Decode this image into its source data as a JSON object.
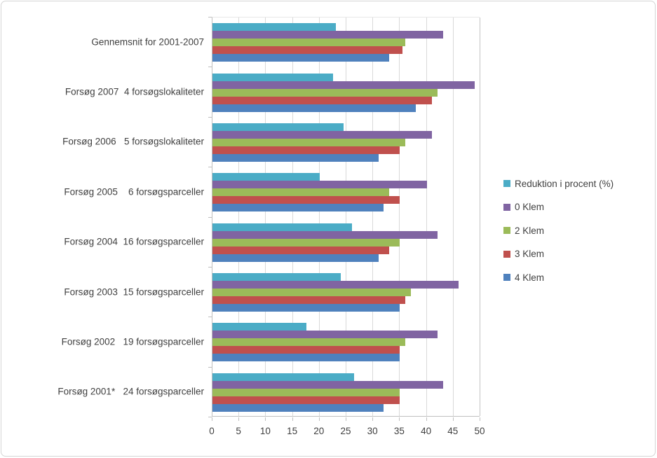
{
  "chart_data": {
    "type": "bar",
    "orientation": "horizontal",
    "title": "",
    "xlabel": "",
    "ylabel": "",
    "xlim": [
      0,
      50
    ],
    "xticks": [
      0,
      5,
      10,
      15,
      20,
      25,
      30,
      35,
      40,
      45,
      50
    ],
    "grid": true,
    "legend_position": "right",
    "categories": [
      "Gennemsnit for 2001-2007",
      "Forsøg 2007  4 forsøgslokaliteter",
      "Forsøg 2006   5 forsøgslokaliteter",
      "Forsøg 2005    6 forsøgsparceller",
      "Forsøg 2004  16 forsøgsparceller",
      "Forsøg 2003  15 forsøgsparceller",
      "Forsøg 2002   19 forsøgsparceller",
      "Forsøg 2001*   24 forsøgsparceller"
    ],
    "series": [
      {
        "name": "Reduktion i procent (%)",
        "color": "#4BACC6",
        "values": [
          23,
          22.5,
          24.5,
          20,
          26,
          24,
          17.5,
          26.5
        ]
      },
      {
        "name": "0 Klem",
        "color": "#8064A2",
        "values": [
          43,
          49,
          41,
          40,
          42,
          46,
          42,
          43
        ]
      },
      {
        "name": "2 Klem",
        "color": "#9BBB59",
        "values": [
          36,
          42,
          36,
          33,
          35,
          37,
          36,
          35
        ]
      },
      {
        "name": "3 Klem",
        "color": "#C0504D",
        "values": [
          35.5,
          41,
          35,
          35,
          33,
          36,
          35,
          35
        ]
      },
      {
        "name": "4 Klem",
        "color": "#4F81BD",
        "values": [
          33,
          38,
          31,
          32,
          31,
          35,
          35,
          32
        ]
      }
    ]
  },
  "colors": {
    "grid": "#d9d9d9",
    "axis": "#bfbfbf",
    "text": "#3f3f3f",
    "background": "#ffffff"
  }
}
